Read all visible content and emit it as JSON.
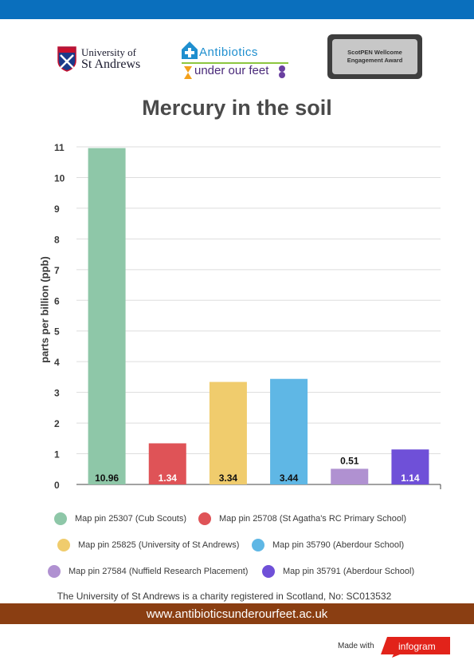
{
  "logos": {
    "university_line1": "University of",
    "university_line2": "St Andrews",
    "antibiotics_top": "Antibiotics",
    "antibiotics_bottom": "under our feet",
    "award_line1": "ScotPEN Wellcome",
    "award_line2": "Engagement Award"
  },
  "footer": {
    "charity": "The University of St Andrews is a charity registered in Scotland, No: SC013532",
    "website": "www.antibioticsunderourfeet.ac.uk",
    "made_with": "Made with",
    "brand": "infogram"
  },
  "colors": {
    "top_bar": "#0a6fbd",
    "footer_bar": "#8a3e12",
    "brand_red": "#e2231a"
  },
  "chart_data": {
    "type": "bar",
    "title": "Mercury in the soil",
    "ylabel": "parts per billion (ppb)",
    "xlabel": "",
    "ylim": [
      0,
      11
    ],
    "yticks": [
      0,
      1,
      2,
      3,
      4,
      5,
      6,
      7,
      8,
      9,
      10,
      11
    ],
    "grid": true,
    "legend_position": "bottom",
    "series": [
      {
        "name": "Map pin 25307 (Cub Scouts)",
        "value": 10.96,
        "label": "10.96",
        "color": "#8ec7a8",
        "label_color": "#111111"
      },
      {
        "name": "Map pin 25708 (St Agatha's RC Primary School)",
        "value": 1.34,
        "label": "1.34",
        "color": "#df5357",
        "label_color": "#ffffff"
      },
      {
        "name": "Map pin 25825 (University of St Andrews)",
        "value": 3.34,
        "label": "3.34",
        "color": "#f0cc6d",
        "label_color": "#111111"
      },
      {
        "name": "Map pin 35790 (Aberdour School)",
        "value": 3.44,
        "label": "3.44",
        "color": "#5fb7e5",
        "label_color": "#111111"
      },
      {
        "name": "Map pin 27584 (Nuffield Research Placement)",
        "value": 0.51,
        "label": "0.51",
        "color": "#b091d1",
        "label_color": "#111111"
      },
      {
        "name": "Map pin 35791 (Aberdour School)",
        "value": 1.14,
        "label": "1.14",
        "color": "#6f50d8",
        "label_color": "#ffffff"
      }
    ]
  }
}
